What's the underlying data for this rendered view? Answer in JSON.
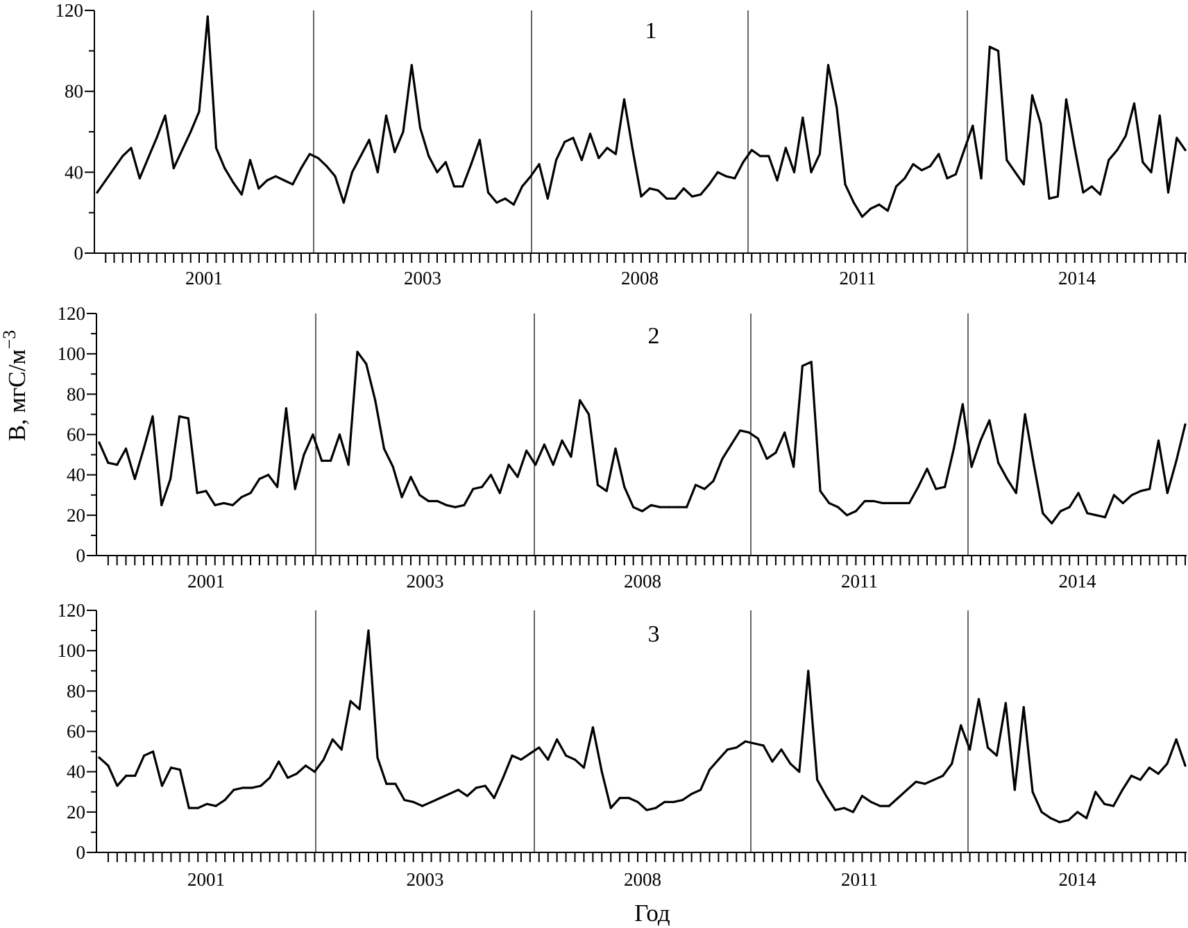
{
  "ylabel": "B, мгC/м",
  "ylabel_sup": "−3",
  "xlabel": "Год",
  "chart_data": [
    {
      "type": "line",
      "panel_label": "1",
      "ylim": [
        0,
        120
      ],
      "yticks": [
        0,
        40,
        80,
        120
      ],
      "ylabel": "B, мгC/м−3",
      "xlabel": "Год",
      "x_period_labels": [
        "2001",
        "2003",
        "2008",
        "2011",
        "2014"
      ],
      "series": [
        {
          "values": [
            30,
            36,
            42,
            48,
            52,
            37,
            47,
            57,
            68,
            42,
            51,
            60,
            70,
            117,
            52,
            42,
            35,
            29,
            46,
            32,
            36,
            38,
            36,
            34,
            42,
            49,
            47,
            43,
            38,
            25,
            40,
            48,
            56,
            40,
            68,
            50,
            60,
            93,
            62,
            48,
            40,
            45,
            33,
            33,
            44,
            56,
            30,
            25,
            27,
            24,
            33,
            38,
            44,
            27,
            46,
            55,
            57,
            46,
            59,
            47,
            52,
            49,
            76,
            51,
            28,
            32,
            31,
            27,
            27,
            32,
            28,
            29,
            34,
            40,
            38,
            37,
            45,
            51,
            48,
            48,
            36,
            52,
            40,
            67,
            40,
            49,
            93,
            72,
            34,
            25,
            18,
            22,
            24,
            21,
            33,
            37,
            44,
            41,
            43,
            49,
            37,
            39,
            51,
            63,
            37,
            102,
            100,
            46,
            40,
            34,
            78,
            64,
            27,
            28,
            76,
            52,
            30,
            33,
            29,
            46,
            51,
            58,
            74,
            45,
            40,
            68,
            30,
            57,
            51
          ]
        }
      ]
    },
    {
      "type": "line",
      "panel_label": "2",
      "ylim": [
        0,
        120
      ],
      "yticks": [
        0,
        20,
        40,
        60,
        80,
        100,
        120
      ],
      "ylabel": "B, мгC/м−3",
      "xlabel": "Год",
      "x_period_labels": [
        "2001",
        "2003",
        "2008",
        "2011",
        "2014"
      ],
      "series": [
        {
          "values": [
            56,
            46,
            45,
            53,
            38,
            53,
            69,
            25,
            38,
            69,
            68,
            31,
            32,
            25,
            26,
            25,
            29,
            31,
            38,
            40,
            34,
            73,
            33,
            50,
            60,
            47,
            47,
            60,
            45,
            101,
            95,
            77,
            53,
            44,
            29,
            39,
            30,
            27,
            27,
            25,
            24,
            25,
            33,
            34,
            40,
            31,
            45,
            39,
            52,
            45,
            55,
            45,
            57,
            49,
            77,
            70,
            35,
            32,
            53,
            34,
            24,
            22,
            25,
            24,
            24,
            24,
            24,
            35,
            33,
            37,
            48,
            55,
            62,
            61,
            58,
            48,
            51,
            61,
            44,
            94,
            96,
            32,
            26,
            24,
            20,
            22,
            27,
            27,
            26,
            26,
            26,
            26,
            34,
            43,
            33,
            34,
            53,
            75,
            44,
            57,
            67,
            46,
            38,
            31,
            70,
            45,
            21,
            16,
            22,
            24,
            31,
            21,
            20,
            19,
            30,
            26,
            30,
            32,
            33,
            57,
            31,
            47,
            65
          ]
        }
      ]
    },
    {
      "type": "line",
      "panel_label": "3",
      "ylim": [
        0,
        120
      ],
      "yticks": [
        0,
        20,
        40,
        60,
        80,
        100,
        120
      ],
      "ylabel": "B, мгC/м−3",
      "xlabel": "Год",
      "x_period_labels": [
        "2001",
        "2003",
        "2008",
        "2011",
        "2014"
      ],
      "series": [
        {
          "values": [
            47,
            43,
            33,
            38,
            38,
            48,
            50,
            33,
            42,
            41,
            22,
            22,
            24,
            23,
            26,
            31,
            32,
            32,
            33,
            37,
            45,
            37,
            39,
            43,
            40,
            46,
            56,
            51,
            75,
            71,
            110,
            47,
            34,
            34,
            26,
            25,
            23,
            25,
            27,
            29,
            31,
            28,
            32,
            33,
            27,
            37,
            48,
            46,
            49,
            52,
            46,
            56,
            48,
            46,
            42,
            62,
            40,
            22,
            27,
            27,
            25,
            21,
            22,
            25,
            25,
            26,
            29,
            31,
            41,
            46,
            51,
            52,
            55,
            54,
            53,
            45,
            51,
            44,
            40,
            90,
            36,
            28,
            21,
            22,
            20,
            28,
            25,
            23,
            23,
            27,
            31,
            35,
            34,
            36,
            38,
            44,
            63,
            51,
            76,
            52,
            48,
            74,
            31,
            72,
            30,
            20,
            17,
            15,
            16,
            20,
            17,
            30,
            24,
            23,
            31,
            38,
            36,
            42,
            39,
            44,
            56,
            43
          ]
        }
      ]
    }
  ]
}
